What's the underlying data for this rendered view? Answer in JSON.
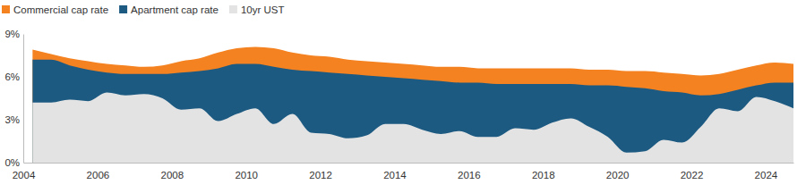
{
  "chart_data": {
    "type": "area",
    "stacked": false,
    "grid": false,
    "legend": "top-left",
    "x": [
      2004.25,
      2004.75,
      2005.25,
      2005.75,
      2006.25,
      2006.75,
      2007.25,
      2007.75,
      2008.25,
      2008.75,
      2009.25,
      2009.75,
      2010.25,
      2010.75,
      2011.25,
      2011.75,
      2012.25,
      2012.75,
      2013.25,
      2013.75,
      2014.25,
      2014.75,
      2015.25,
      2015.75,
      2016.25,
      2016.75,
      2017.25,
      2017.75,
      2018.25,
      2018.75,
      2019.25,
      2019.75,
      2020.25,
      2020.75,
      2021.25,
      2021.75,
      2022.25,
      2022.75,
      2023.25,
      2023.75,
      2024.25,
      2024.75
    ],
    "series": [
      {
        "name": "Commercial cap rate",
        "color": "#f58220",
        "values": [
          7.9,
          7.6,
          7.3,
          7.1,
          6.9,
          6.8,
          6.7,
          6.8,
          7.1,
          7.3,
          7.7,
          8.0,
          8.1,
          8.0,
          7.7,
          7.5,
          7.4,
          7.2,
          7.1,
          7.0,
          6.9,
          6.8,
          6.7,
          6.7,
          6.6,
          6.6,
          6.6,
          6.6,
          6.6,
          6.6,
          6.5,
          6.5,
          6.4,
          6.4,
          6.3,
          6.2,
          6.1,
          6.2,
          6.5,
          6.8,
          7.0,
          6.9
        ]
      },
      {
        "name": "Apartment cap rate",
        "color": "#1c5a82",
        "values": [
          7.2,
          7.2,
          6.8,
          6.5,
          6.3,
          6.2,
          6.2,
          6.2,
          6.3,
          6.4,
          6.6,
          6.9,
          6.9,
          6.7,
          6.5,
          6.4,
          6.3,
          6.2,
          6.1,
          6.0,
          5.9,
          5.8,
          5.7,
          5.6,
          5.6,
          5.5,
          5.5,
          5.5,
          5.5,
          5.5,
          5.4,
          5.4,
          5.3,
          5.2,
          5.0,
          4.9,
          4.7,
          4.8,
          5.1,
          5.4,
          5.6,
          5.6
        ]
      },
      {
        "name": "10yr UST",
        "color": "#e3e3e3",
        "values": [
          4.2,
          4.2,
          4.4,
          4.3,
          4.9,
          4.7,
          4.8,
          4.5,
          3.7,
          3.8,
          2.9,
          3.4,
          3.8,
          2.7,
          3.4,
          2.1,
          2.0,
          1.7,
          1.9,
          2.7,
          2.7,
          2.3,
          2.0,
          2.2,
          1.8,
          1.8,
          2.4,
          2.3,
          2.8,
          3.1,
          2.5,
          1.8,
          0.7,
          0.8,
          1.6,
          1.4,
          2.5,
          3.8,
          3.6,
          4.6,
          4.3,
          3.8
        ]
      }
    ],
    "xlim": [
      2004,
      2024.75
    ],
    "xticks": [
      2004,
      2006,
      2008,
      2010,
      2012,
      2014,
      2016,
      2018,
      2020,
      2022,
      2024
    ],
    "ylim": [
      0,
      9
    ],
    "yticks": [
      {
        "value": 0,
        "label": "0%"
      },
      {
        "value": 3,
        "label": "3%"
      },
      {
        "value": 6,
        "label": "6%"
      },
      {
        "value": 9,
        "label": "9%"
      }
    ]
  }
}
